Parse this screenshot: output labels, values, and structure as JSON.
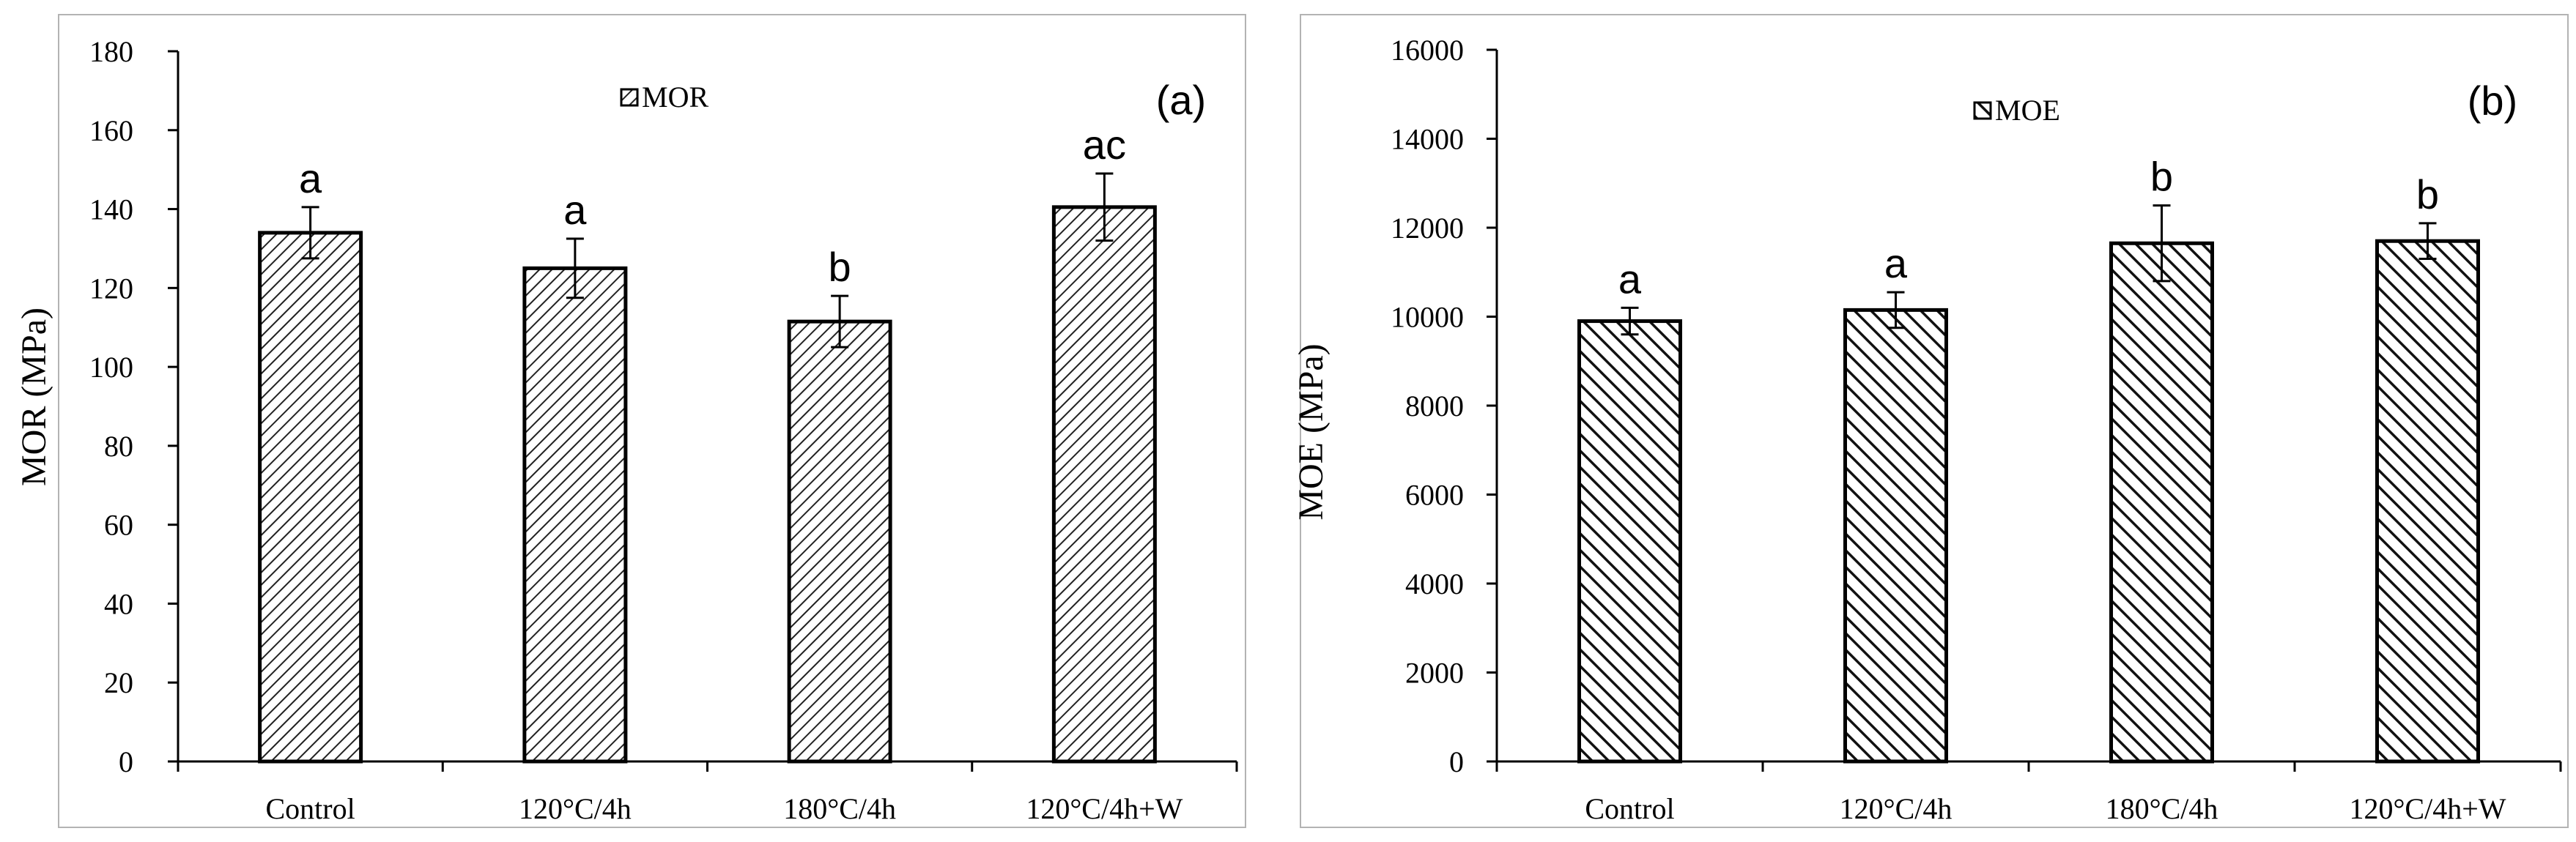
{
  "chart_data": [
    {
      "type": "bar",
      "panel_label": "(a)",
      "title": "",
      "xlabel": "",
      "ylabel": "MOR (MPa)",
      "ylim": [
        0,
        180
      ],
      "yticks": [
        0,
        20,
        40,
        60,
        80,
        100,
        120,
        140,
        160,
        180
      ],
      "grid": false,
      "legend": {
        "entries": [
          "MOR"
        ],
        "position": "top-center"
      },
      "categories": [
        "Control",
        "120°C/4h",
        "180°C/4h",
        "120°C/4h+W"
      ],
      "series": [
        {
          "name": "MOR",
          "values": [
            134,
            125,
            111.5,
            140.5
          ],
          "errors": [
            6.5,
            7.5,
            6.5,
            8.5
          ],
          "significance_letters": [
            "a",
            "a",
            "b",
            "ac"
          ]
        }
      ],
      "colors": {
        "bar_fill": "#ffffff",
        "hatch": "#222222",
        "axis": "#000000"
      }
    },
    {
      "type": "bar",
      "panel_label": "(b)",
      "title": "",
      "xlabel": "",
      "ylabel": "MOE (MPa)",
      "ylim": [
        0,
        16000
      ],
      "yticks": [
        0,
        2000,
        4000,
        6000,
        8000,
        10000,
        12000,
        14000,
        16000
      ],
      "grid": false,
      "legend": {
        "entries": [
          "MOE"
        ],
        "position": "top-center"
      },
      "categories": [
        "Control",
        "120°C/4h",
        "180°C/4h",
        "120°C/4h+W"
      ],
      "series": [
        {
          "name": "MOE",
          "values": [
            9900,
            10150,
            11650,
            11700
          ],
          "errors": [
            300,
            400,
            850,
            400
          ],
          "significance_letters": [
            "a",
            "a",
            "b",
            "b"
          ]
        }
      ],
      "colors": {
        "bar_fill": "#ffffff",
        "hatch": "#111111",
        "axis": "#000000"
      }
    }
  ]
}
